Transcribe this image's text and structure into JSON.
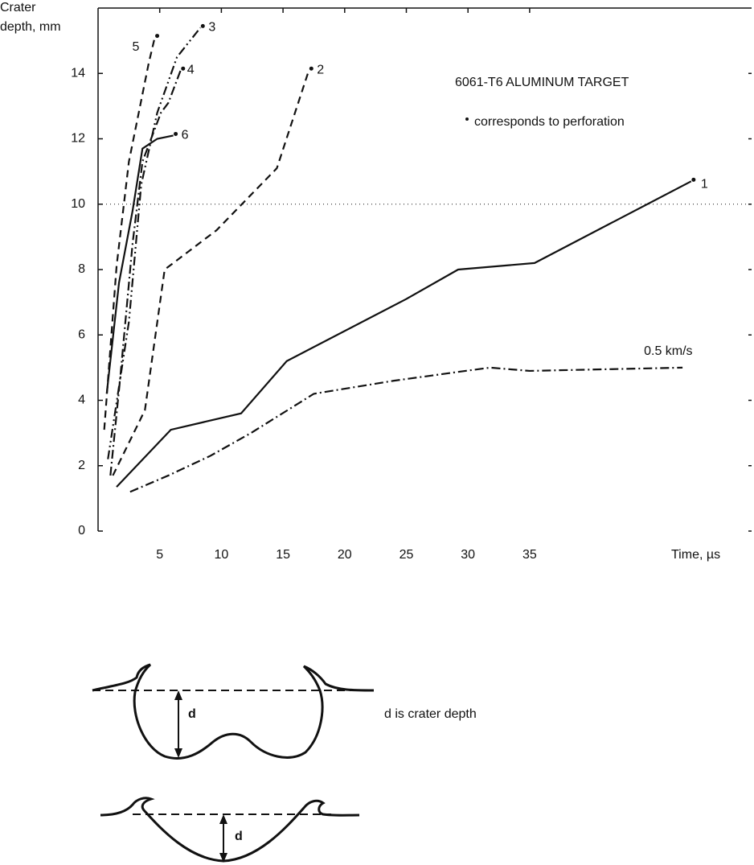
{
  "chart_data": {
    "type": "line",
    "ylabel": [
      "Crater",
      "depth, mm"
    ],
    "xlabel": "Time, µs",
    "annotations": [
      "6061-T6 ALUMINUM TARGET",
      "corresponds to perforation"
    ],
    "xlim": [
      0,
      53
    ],
    "ylim": [
      0,
      16
    ],
    "xticks": [
      5,
      10,
      15,
      20,
      25,
      30,
      35
    ],
    "yticks": [
      0,
      2,
      4,
      6,
      8,
      10,
      12,
      14
    ],
    "hline": 10,
    "series": [
      {
        "name": "1",
        "color": "#111111",
        "dash": "solid",
        "perforation": true,
        "x": [
          1.5,
          5.9,
          11.6,
          15.3,
          25.0,
          29.2,
          35.4,
          48.1
        ],
        "values": [
          1.35,
          3.1,
          3.6,
          5.2,
          7.1,
          8.0,
          8.2,
          10.7
        ]
      },
      {
        "name": "2",
        "color": "#111111",
        "dash": "dashed",
        "perforation": true,
        "x": [
          1.2,
          3.8,
          5.4,
          9.6,
          14.5,
          17.1
        ],
        "values": [
          1.7,
          3.7,
          8.0,
          9.2,
          11.1,
          14.1
        ]
      },
      {
        "name": "3",
        "color": "#111111",
        "dash": "dashdotdot",
        "perforation": true,
        "x": [
          0.8,
          2.5,
          3.5,
          4.8,
          6.4,
          8.3
        ],
        "values": [
          2.2,
          6.4,
          10.6,
          12.8,
          14.5,
          15.4
        ]
      },
      {
        "name": "4",
        "color": "#111111",
        "dash": "dashdot",
        "perforation": true,
        "x": [
          1.0,
          1.8,
          2.8,
          3.6,
          5.1,
          5.7,
          6.7
        ],
        "values": [
          1.7,
          4.7,
          8.8,
          11.3,
          12.8,
          13.1,
          14.1
        ]
      },
      {
        "name": "5",
        "color": "#111111",
        "dash": "dashed",
        "perforation": true,
        "x": [
          0.5,
          1.5,
          2.5,
          4.1,
          4.6
        ],
        "values": [
          3.1,
          8.1,
          11.3,
          14.3,
          15.1
        ]
      },
      {
        "name": "6",
        "color": "#111111",
        "dash": "solid",
        "perforation": true,
        "x": [
          0.7,
          1.7,
          2.8,
          3.6,
          4.8,
          6.1
        ],
        "values": [
          4.2,
          7.6,
          9.8,
          11.7,
          12.0,
          12.1
        ]
      },
      {
        "name": "0.5 km/s",
        "color": "#111111",
        "dash": "dashdot",
        "perforation": false,
        "x": [
          2.6,
          5.7,
          9.1,
          12.4,
          17.5,
          24.0,
          29.8,
          31.8,
          35.0,
          47.4
        ],
        "values": [
          1.2,
          1.7,
          2.3,
          3.0,
          4.2,
          4.6,
          4.9,
          5.0,
          4.9,
          5.0
        ]
      }
    ]
  },
  "diagram": {
    "labels": [
      "d",
      "d"
    ],
    "caption": "d is crater depth"
  }
}
